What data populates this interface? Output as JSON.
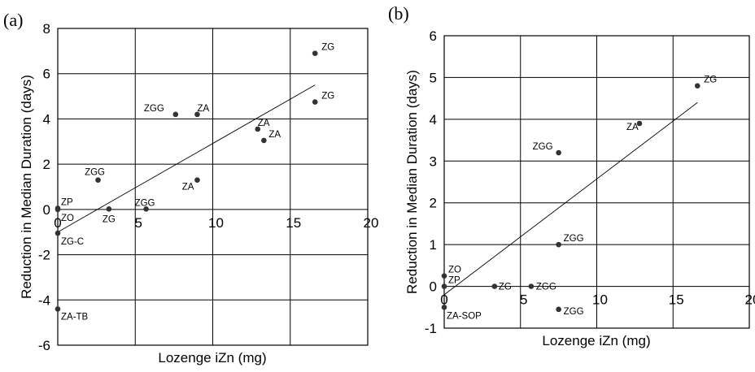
{
  "chart_data": [
    {
      "panel_label": "(a)",
      "type": "scatter",
      "xlabel": "Lozenge iZn (mg)",
      "ylabel": "Reduction in Median Duration (days)",
      "xlim": [
        0,
        20
      ],
      "ylim": [
        -6,
        8
      ],
      "x_ticks": [
        "0",
        "5",
        "10",
        "15",
        "20"
      ],
      "y_ticks": [
        "-6",
        "-4",
        "-2",
        "0",
        "2",
        "4",
        "6",
        "8"
      ],
      "grid": true,
      "points": [
        {
          "label": "ZG",
          "x": 16.6,
          "y": 6.9
        },
        {
          "label": "ZG",
          "x": 16.6,
          "y": 4.75
        },
        {
          "label": "ZGG",
          "x": 7.6,
          "y": 4.2
        },
        {
          "label": "ZA",
          "x": 9.0,
          "y": 4.2
        },
        {
          "label": "ZA",
          "x": 12.9,
          "y": 3.55
        },
        {
          "label": "ZA",
          "x": 13.3,
          "y": 3.05
        },
        {
          "label": "ZA",
          "x": 9.0,
          "y": 1.3
        },
        {
          "label": "ZGG",
          "x": 2.6,
          "y": 1.3
        },
        {
          "label": "ZP",
          "x": 0,
          "y": 0.05
        },
        {
          "label": "ZO",
          "x": 0,
          "y": 0
        },
        {
          "label": "ZG",
          "x": 3.3,
          "y": 0.02
        },
        {
          "label": "ZGG",
          "x": 5.7,
          "y": 0.02
        },
        {
          "label": "ZG-C",
          "x": 0,
          "y": -1.05
        },
        {
          "label": "ZA-TB",
          "x": 0,
          "y": -4.4
        }
      ],
      "fit_line": {
        "x": [
          0,
          16.6
        ],
        "y": [
          -1.0,
          5.5
        ]
      }
    },
    {
      "panel_label": "(b)",
      "type": "scatter",
      "xlabel": "Lozenge iZn (mg)",
      "ylabel": "Reduction in Median Duration (days)",
      "xlim": [
        0,
        20
      ],
      "ylim": [
        -1,
        6
      ],
      "x_ticks": [
        "0",
        "5",
        "10",
        "15",
        "20"
      ],
      "y_ticks": [
        "-1",
        "0",
        "1",
        "2",
        "3",
        "4",
        "5",
        "6"
      ],
      "grid": true,
      "points": [
        {
          "label": "ZG",
          "x": 16.6,
          "y": 4.8
        },
        {
          "label": "ZA",
          "x": 12.8,
          "y": 3.9
        },
        {
          "label": "ZGG",
          "x": 7.5,
          "y": 3.2
        },
        {
          "label": "ZGG",
          "x": 7.5,
          "y": 1.0
        },
        {
          "label": "ZO",
          "x": 0,
          "y": 0.25
        },
        {
          "label": "ZP",
          "x": 0,
          "y": 0
        },
        {
          "label": "ZG",
          "x": 3.3,
          "y": 0
        },
        {
          "label": "ZGG",
          "x": 5.7,
          "y": 0
        },
        {
          "label": "ZGG",
          "x": 7.5,
          "y": -0.55
        },
        {
          "label": "ZA-SOP",
          "x": 0,
          "y": -0.5
        }
      ],
      "fit_line": {
        "x": [
          0,
          16.6
        ],
        "y": [
          -0.2,
          4.4
        ]
      }
    }
  ]
}
